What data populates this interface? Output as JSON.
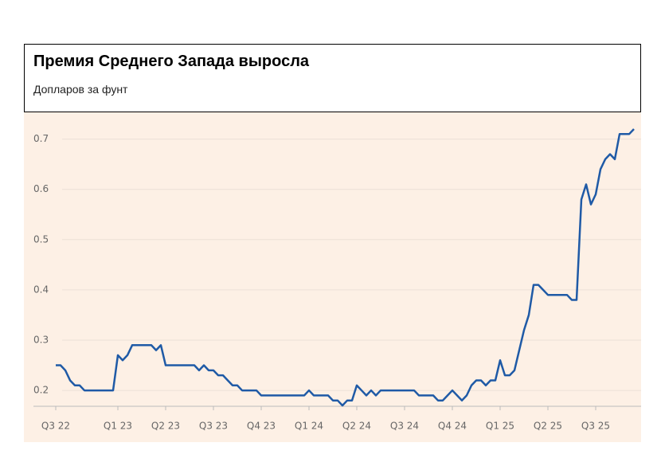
{
  "chart_data": {
    "type": "line",
    "title": "Премия Среднего Запада выросла",
    "subtitle": "Допларов за фунт",
    "categories": [
      "Q3 22",
      null,
      null,
      null,
      null,
      null,
      null,
      null,
      null,
      null,
      null,
      null,
      null,
      "Q1 23",
      null,
      null,
      null,
      null,
      null,
      null,
      null,
      null,
      null,
      "Q2 23",
      null,
      null,
      null,
      null,
      null,
      null,
      null,
      null,
      null,
      "Q3 23",
      null,
      null,
      null,
      null,
      null,
      null,
      null,
      null,
      null,
      "Q4 23",
      null,
      null,
      null,
      null,
      null,
      null,
      null,
      null,
      null,
      "Q1 24",
      null,
      null,
      null,
      null,
      null,
      null,
      null,
      null,
      null,
      "Q2 24",
      null,
      null,
      null,
      null,
      null,
      null,
      null,
      null,
      null,
      "Q3 24",
      null,
      null,
      null,
      null,
      null,
      null,
      null,
      null,
      null,
      "Q4 24",
      null,
      null,
      null,
      null,
      null,
      null,
      null,
      null,
      null,
      "Q1 25",
      null,
      null,
      null,
      null,
      null,
      null,
      null,
      null,
      null,
      "Q2 25",
      null,
      null,
      null,
      null,
      null,
      null,
      null,
      null,
      null,
      "Q3 25",
      null,
      null,
      null,
      null,
      null,
      null,
      null,
      null
    ],
    "values": [
      0.25,
      0.25,
      0.24,
      0.22,
      0.21,
      0.21,
      0.2,
      0.2,
      0.2,
      0.2,
      0.2,
      0.2,
      0.2,
      0.27,
      0.26,
      0.27,
      0.29,
      0.29,
      0.29,
      0.29,
      0.29,
      0.28,
      0.29,
      0.25,
      0.25,
      0.25,
      0.25,
      0.25,
      0.25,
      0.25,
      0.24,
      0.25,
      0.24,
      0.24,
      0.23,
      0.23,
      0.22,
      0.21,
      0.21,
      0.2,
      0.2,
      0.2,
      0.2,
      0.19,
      0.19,
      0.19,
      0.19,
      0.19,
      0.19,
      0.19,
      0.19,
      0.19,
      0.19,
      0.2,
      0.19,
      0.19,
      0.19,
      0.19,
      0.18,
      0.18,
      0.17,
      0.18,
      0.18,
      0.21,
      0.2,
      0.19,
      0.2,
      0.19,
      0.2,
      0.2,
      0.2,
      0.2,
      0.2,
      0.2,
      0.2,
      0.2,
      0.19,
      0.19,
      0.19,
      0.19,
      0.18,
      0.18,
      0.19,
      0.2,
      0.19,
      0.18,
      0.19,
      0.21,
      0.22,
      0.22,
      0.21,
      0.22,
      0.22,
      0.26,
      0.23,
      0.23,
      0.24,
      0.28,
      0.32,
      0.35,
      0.41,
      0.41,
      0.4,
      0.39,
      0.39,
      0.39,
      0.39,
      0.39,
      0.38,
      0.38,
      0.58,
      0.61,
      0.57,
      0.59,
      0.64,
      0.66,
      0.67,
      0.66,
      0.71,
      0.71,
      0.71,
      0.72
    ],
    "color": "#1f5aa6",
    "ylim": [
      0.17,
      0.72
    ],
    "yticks": [
      0.2,
      0.3,
      0.4,
      0.5,
      0.6,
      0.7
    ],
    "grid": true
  }
}
